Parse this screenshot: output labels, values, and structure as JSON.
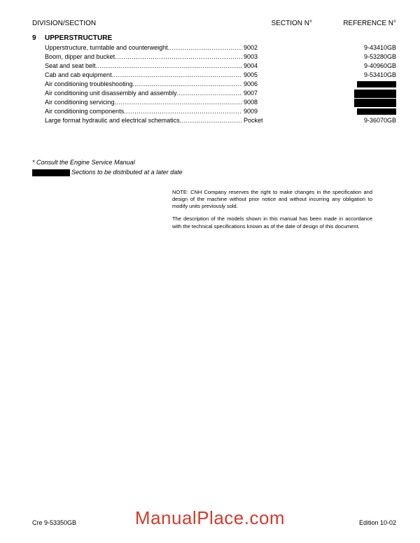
{
  "header": {
    "division": "DIVISION/SECTION",
    "section": "SECTION N°",
    "reference": "REFERENCE N°"
  },
  "section": {
    "number": "9",
    "title": "UPPERSTRUCTURE"
  },
  "toc": [
    {
      "title": "Upperstructure, turntable and counterweight",
      "sec": "9002",
      "ref": "9-43410GB"
    },
    {
      "title": "Boom, dipper and bucket",
      "sec": "9003",
      "ref": "9-53280GB"
    },
    {
      "title": "Seat and seat belt",
      "sec": "9004",
      "ref": "9-40960GB"
    },
    {
      "title": "Cab and cab equipment",
      "sec": "9005",
      "ref": "9-53410GB"
    },
    {
      "title": "Air conditioning troubleshooting",
      "sec": "9006",
      "ref": ""
    },
    {
      "title": "Air conditioning unit disassembly and assembly",
      "sec": "9007",
      "ref": ""
    },
    {
      "title": "Air conditioning servicing",
      "sec": "9008",
      "ref": ""
    },
    {
      "title": "Air conditioning components",
      "sec": "9009",
      "ref": ""
    },
    {
      "title": "Large format hydraulic and electrical schematics",
      "sec": "Pocket",
      "ref": "9-36070GB"
    }
  ],
  "redacted_indices": [
    4,
    5,
    6,
    7
  ],
  "notes": {
    "line1": "*  Consult the Engine Service Manual",
    "line2_suffix": "Sections to be distributed at a later date"
  },
  "fineprint": {
    "p1": "NOTE: CNH Company reserves the right to make changes in the specification and design of the machine without prior notice and without incurring any obligation to modify units previously sold.",
    "p2": "The description of the models shown in this manual has been made in accordance with the technical specifications known as of the date of design of this document."
  },
  "footer": {
    "left": "Cre 9-53350GB",
    "right": "Edition 10-02"
  },
  "watermark": "ManualPlace.com"
}
